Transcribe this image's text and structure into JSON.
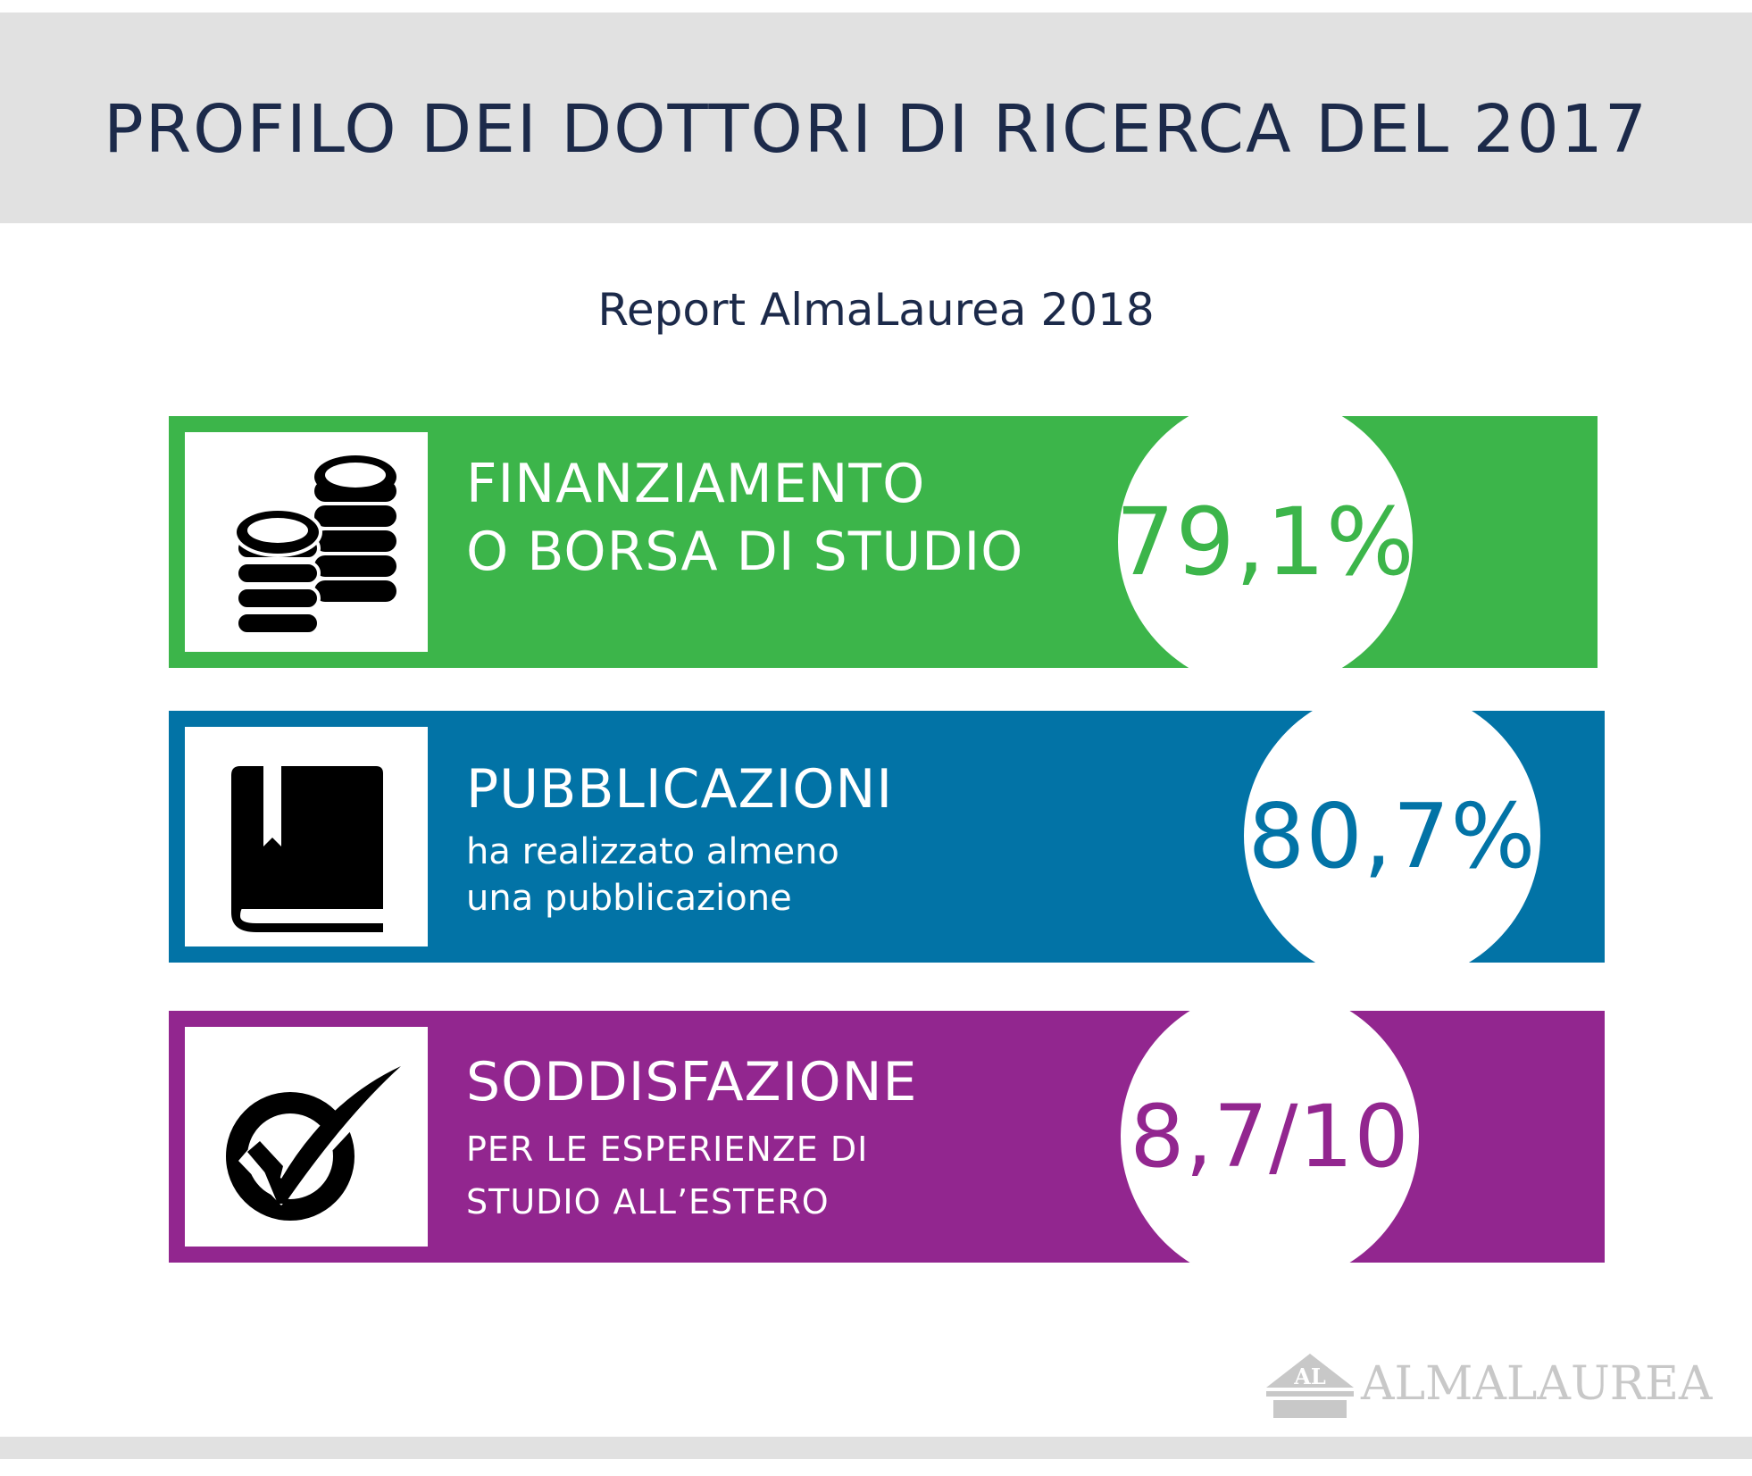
{
  "header": {
    "title": "PROFILO DEI DOTTORI DI RICERCA DEL 2017"
  },
  "subtitle": "Report AlmaLaurea 2018",
  "colors": {
    "green": "#3cb54a",
    "blue": "#0273a6",
    "purple": "#92268f",
    "navy": "#1c2a4a",
    "grey": "#e1e1e1"
  },
  "cards": [
    {
      "icon": "coins-icon",
      "heading": [
        "FINANZIAMENTO",
        "O BORSA DI STUDIO"
      ],
      "subtext": [],
      "value": "79,1%"
    },
    {
      "icon": "book-icon",
      "heading": [
        "PUBBLICAZIONI"
      ],
      "subtext": [
        "ha realizzato almeno",
        "una pubblicazione"
      ],
      "value": "80,7%"
    },
    {
      "icon": "checkmark-icon",
      "heading": [
        "SODDISFAZIONE"
      ],
      "subtext": [
        "PER LE ESPERIENZE DI",
        "STUDIO ALL’ESTERO"
      ],
      "value": "8,7/10"
    }
  ],
  "logo": {
    "mark": "AL",
    "text": "ALMALAUREA"
  }
}
